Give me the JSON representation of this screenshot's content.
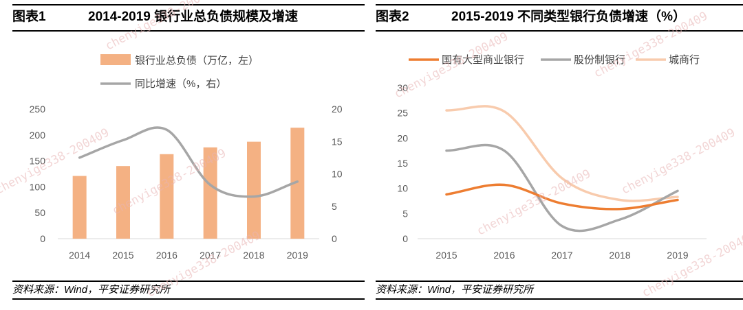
{
  "charts": {
    "left": {
      "title_label": "图表1",
      "title_text": "2014-2019 银行业总负债规模及增速",
      "source": "资料来源：Wind，平安证券研究所"
    },
    "right": {
      "title_label": "图表2",
      "title_text": "2015-2019 不同类型银行负债增速（%）",
      "source": "资料来源：Wind，平安证券研究所"
    }
  },
  "watermark_text": "chenyige338-200409",
  "colors": {
    "bar": "#f4b183",
    "growth_line": "#a6a6a6",
    "state_owned": "#ed7d31",
    "joint_stock": "#a6a6a6",
    "city_commercial": "#f8cbad"
  },
  "chart_data": [
    {
      "type": "bar",
      "title": "2014-2019 银行业总负债规模及增速",
      "categories": [
        "2014",
        "2015",
        "2016",
        "2017",
        "2018",
        "2019"
      ],
      "series": [
        {
          "name": "银行业总负债（万亿，左）",
          "kind": "bar",
          "axis": "left",
          "values": [
            121,
            140,
            163,
            176,
            187,
            214
          ]
        },
        {
          "name": "同比增速（%，右）",
          "kind": "line",
          "axis": "right",
          "values": [
            12.5,
            15.2,
            16.8,
            8.3,
            6.5,
            8.8
          ]
        }
      ],
      "ylim_left": [
        0,
        250
      ],
      "yticks_left": [
        "0",
        "50",
        "100",
        "150",
        "200",
        "250"
      ],
      "ylim_right": [
        0,
        20
      ],
      "yticks_right": [
        "0",
        "5",
        "10",
        "15",
        "20"
      ],
      "grid": false,
      "legend": "top"
    },
    {
      "type": "line",
      "title": "2015-2019 不同类型银行负债增速（%）",
      "categories": [
        "2015",
        "2016",
        "2017",
        "2018",
        "2019"
      ],
      "series": [
        {
          "name": "国有大型商业银行",
          "values": [
            8.8,
            10.7,
            7.0,
            5.9,
            7.7
          ]
        },
        {
          "name": "股份制银行",
          "values": [
            17.5,
            17.5,
            2.5,
            3.8,
            9.5
          ]
        },
        {
          "name": "城商行",
          "values": [
            25.5,
            25.3,
            12.0,
            7.7,
            8.3
          ]
        }
      ],
      "ylim": [
        0,
        30
      ],
      "yticks": [
        "0",
        "5",
        "10",
        "15",
        "20",
        "25",
        "30"
      ],
      "grid": false,
      "legend": "top"
    }
  ]
}
